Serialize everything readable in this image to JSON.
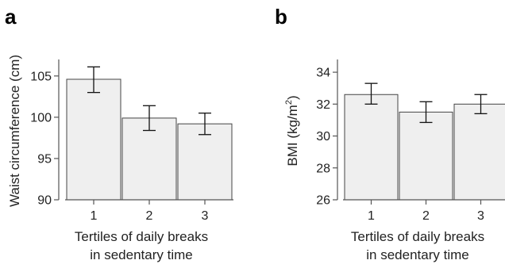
{
  "chart_data": [
    {
      "type": "bar",
      "panel": "a",
      "categories": [
        "1",
        "2",
        "3"
      ],
      "values": [
        104.6,
        99.9,
        99.2
      ],
      "error_low": [
        103.0,
        98.4,
        97.9
      ],
      "error_high": [
        106.1,
        101.4,
        100.5
      ],
      "xlabel_lines": [
        "Tertiles of daily breaks",
        "in sedentary time"
      ],
      "ylabel": "Waist circumference (cm)",
      "ylabel_sup": "",
      "ylabel_end": "",
      "ylim": [
        90,
        107
      ],
      "yticks": [
        90,
        95,
        100,
        105
      ],
      "grid": false
    },
    {
      "type": "bar",
      "panel": "b",
      "categories": [
        "1",
        "2",
        "3"
      ],
      "values": [
        32.6,
        31.5,
        32.0
      ],
      "error_low": [
        32.0,
        30.85,
        31.4
      ],
      "error_high": [
        33.3,
        32.15,
        32.6
      ],
      "xlabel_lines": [
        "Tertiles of daily breaks",
        "in sedentary time"
      ],
      "ylabel": "BMI (kg/m",
      "ylabel_sup": "2",
      "ylabel_end": ")",
      "ylim": [
        26,
        34.8
      ],
      "yticks": [
        26,
        28,
        30,
        32,
        34
      ],
      "grid": false
    }
  ]
}
